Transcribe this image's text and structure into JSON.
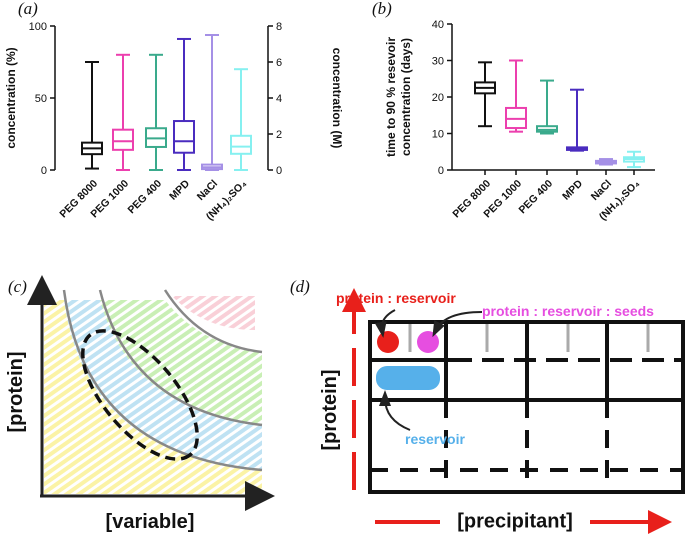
{
  "chart_data": [
    {
      "type": "box",
      "label": "(a)",
      "ylabel": "concentration (%)",
      "y2label": "concentration (M)",
      "categories": [
        "PEG 8000",
        "PEG 1000",
        "PEG 400",
        "MPD",
        "NaCl",
        "(NH₄)₂SO₄"
      ],
      "colors": [
        "#111111",
        "#ec3fae",
        "#3aaa8c",
        "#4a2cbf",
        "#a590e6",
        "#86f0f0"
      ],
      "boxes": [
        {
          "min": 1,
          "q1": 11,
          "median": 15,
          "q3": 19,
          "max": 75
        },
        {
          "min": 0,
          "q1": 14,
          "median": 20,
          "q3": 28,
          "max": 80
        },
        {
          "min": 0,
          "q1": 16,
          "median": 22,
          "q3": 29,
          "max": 80
        },
        {
          "min": 0,
          "q1": 12,
          "median": 20,
          "q3": 34,
          "max": 91
        },
        {
          "min": 0,
          "q1": 0.05,
          "median": 0.15,
          "q3": 0.3,
          "max": 7.5,
          "axis": "y2"
        },
        {
          "min": 0,
          "q1": 0.9,
          "median": 1.3,
          "q3": 1.9,
          "max": 5.6,
          "axis": "y2"
        }
      ],
      "ylim": [
        0,
        100
      ],
      "yticks": [
        0,
        50,
        100
      ],
      "y2lim": [
        0,
        8
      ],
      "y2ticks": [
        0,
        2,
        4,
        6,
        8
      ]
    },
    {
      "type": "box",
      "label": "(b)",
      "ylabel": [
        "time to  90 % resevoir",
        "concentration (days)"
      ],
      "categories": [
        "PEG 8000",
        "PEG 1000",
        "PEG 400",
        "MPD",
        "NaCl",
        "(NH₄)₂SO₄"
      ],
      "colors": [
        "#111111",
        "#ec3fae",
        "#3aaa8c",
        "#4a2cbf",
        "#a590e6",
        "#86f0f0"
      ],
      "boxes": [
        {
          "min": 12,
          "q1": 21,
          "median": 22.5,
          "q3": 24,
          "max": 29.5
        },
        {
          "min": 10.5,
          "q1": 11.5,
          "median": 14,
          "q3": 17,
          "max": 30
        },
        {
          "min": 10,
          "q1": 10.5,
          "median": 11,
          "q3": 12,
          "max": 24.5
        },
        {
          "min": 5.3,
          "q1": 5.5,
          "median": 5.8,
          "q3": 6.2,
          "max": 22
        },
        {
          "min": 1.5,
          "q1": 1.8,
          "median": 2.2,
          "q3": 2.5,
          "max": 3
        },
        {
          "min": 0.8,
          "q1": 2.3,
          "median": 3,
          "q3": 3.5,
          "max": 5
        }
      ],
      "ylim": [
        0,
        40
      ],
      "yticks": [
        0,
        10,
        20,
        30,
        40
      ]
    }
  ],
  "panels": {
    "c": {
      "label": "(c)",
      "ylabel": "[protein]",
      "xlabel": "[variable]"
    },
    "d": {
      "label": "(d)",
      "drop1": "protein : reservoir",
      "drop2": "protein : reservoir : seeds",
      "reservoir": "reservoir",
      "ylabel": "[protein]",
      "xlabel": "[precipitant]"
    }
  }
}
